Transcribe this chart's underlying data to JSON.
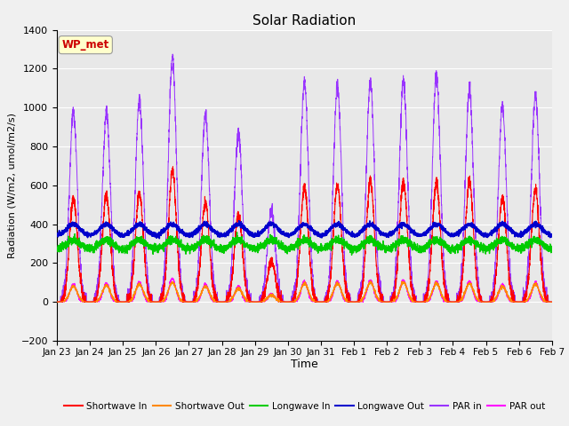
{
  "title": "Solar Radiation",
  "xlabel": "Time",
  "ylabel": "Radiation (W/m2, umol/m2/s)",
  "ylim": [
    -200,
    1400
  ],
  "yticks": [
    -200,
    0,
    200,
    400,
    600,
    800,
    1000,
    1200,
    1400
  ],
  "xtick_labels": [
    "Jan 23",
    "Jan 24",
    "Jan 25",
    "Jan 26",
    "Jan 27",
    "Jan 28",
    "Jan 29",
    "Jan 30",
    "Jan 31",
    "Feb 1",
    "Feb 2",
    "Feb 3",
    "Feb 4",
    "Feb 5",
    "Feb 6",
    "Feb 7"
  ],
  "background_color": "#f0f0f0",
  "plot_bg_color": "#e8e8e8",
  "grid_color": "#ffffff",
  "annotation_text": "WP_met",
  "annotation_box_color": "#ffffcc",
  "annotation_text_color": "#cc0000",
  "series_colors": {
    "shortwave_in": "#ff0000",
    "shortwave_out": "#ff8800",
    "longwave_in": "#00cc00",
    "longwave_out": "#0000cc",
    "par_in": "#9933ff",
    "par_out": "#ff00ff"
  },
  "legend_labels": [
    "Shortwave In",
    "Shortwave Out",
    "Longwave In",
    "Longwave Out",
    "PAR in",
    "PAR out"
  ],
  "n_days": 15,
  "pts_per_day": 288,
  "sw_in_peaks": [
    530,
    550,
    560,
    670,
    510,
    450,
    210,
    590,
    600,
    620,
    620,
    610,
    620,
    540,
    580
  ],
  "sw_out_peaks": [
    80,
    85,
    90,
    100,
    80,
    70,
    35,
    95,
    95,
    100,
    100,
    95,
    95,
    80,
    90
  ],
  "par_in_peaks": [
    980,
    970,
    1040,
    1255,
    965,
    870,
    475,
    1135,
    1115,
    1135,
    1135,
    1165,
    1090,
    1005,
    1065
  ],
  "par_out_peaks": [
    90,
    95,
    100,
    120,
    90,
    80,
    40,
    105,
    105,
    110,
    110,
    105,
    105,
    90,
    100
  ],
  "lw_in_base": 270,
  "lw_out_base": 340
}
